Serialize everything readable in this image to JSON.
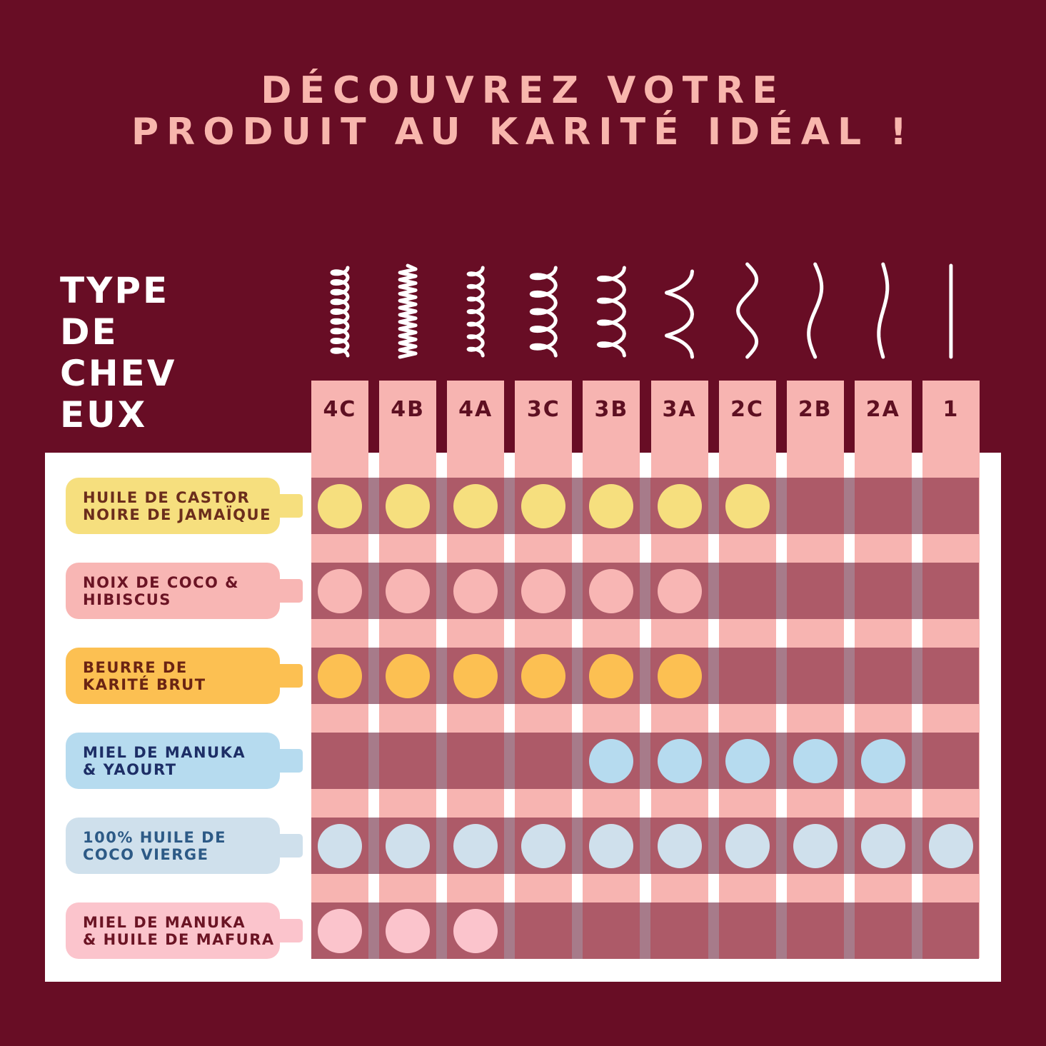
{
  "title_lines": [
    "DÉCOUVREZ VOTRE",
    "PRODUIT AU KARITÉ IDÉAL !"
  ],
  "hair_type_label_lines": [
    "TYPE",
    "DE",
    "CHEV",
    "EUX"
  ],
  "hair_types": [
    "4C",
    "4B",
    "4A",
    "3C",
    "3B",
    "3A",
    "2C",
    "2B",
    "2A",
    "1"
  ],
  "products": [
    {
      "name": "HUILE DE CASTOR\nNOIRE DE JAMAÏQUE",
      "color": "#f6df7e",
      "text_color": "#6b2d1c",
      "suitable": [
        "4C",
        "4B",
        "4A",
        "3C",
        "3B",
        "3A",
        "2C"
      ]
    },
    {
      "name": "NOIX DE COCO &\nHIBISCUS",
      "color": "#f8b6b4",
      "text_color": "#6b1424",
      "suitable": [
        "4C",
        "4B",
        "4A",
        "3C",
        "3B",
        "3A"
      ]
    },
    {
      "name": "BEURRE DE\nKARITÉ BRUT",
      "color": "#fcc052",
      "text_color": "#6b2413",
      "suitable": [
        "4C",
        "4B",
        "4A",
        "3C",
        "3B",
        "3A"
      ]
    },
    {
      "name": "MIEL DE MANUKA\n& YAOURT",
      "color": "#b6dbef",
      "text_color": "#1d2e66",
      "suitable": [
        "3B",
        "3A",
        "2C",
        "2B",
        "2A"
      ]
    },
    {
      "name": "100% HUILE DE\nCOCO VIERGE",
      "color": "#cfe0ec",
      "text_color": "#2d5a86",
      "suitable": [
        "4C",
        "4B",
        "4A",
        "3C",
        "3B",
        "3A",
        "2C",
        "2B",
        "2A",
        "1"
      ]
    },
    {
      "name": "MIEL DE MANUKA\n& HUILE DE MAFURA",
      "color": "#fbc4cc",
      "text_color": "#6b1424",
      "suitable": [
        "4C",
        "4B",
        "4A"
      ]
    }
  ],
  "colors": {
    "background": "#680d25",
    "title": "#f8b6ad",
    "column": "#f7b4b1",
    "row_band": "#ad5a68",
    "label_text": "#5e1022"
  },
  "icons": [
    "tight-coil-icon",
    "zigzag-coil-icon",
    "small-coil-icon",
    "coil-icon",
    "loose-coil-icon",
    "big-curl-icon",
    "s-wave-icon",
    "wave-icon",
    "slight-wave-icon",
    "straight-line-icon"
  ]
}
